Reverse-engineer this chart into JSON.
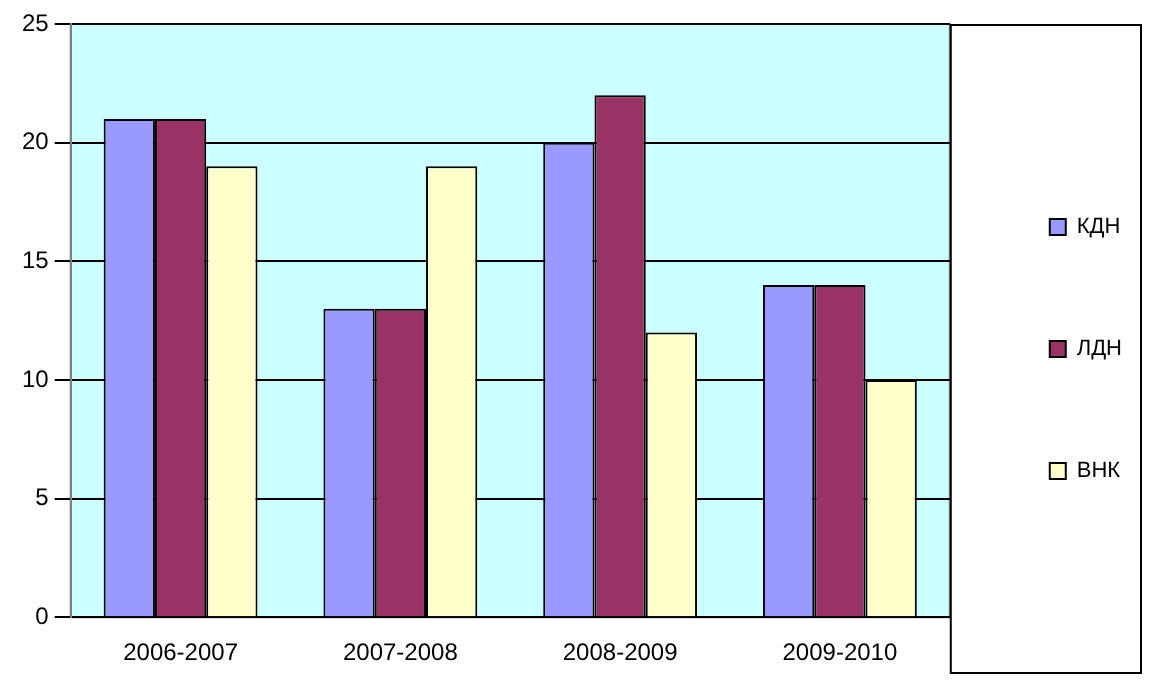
{
  "chart_data": {
    "type": "bar",
    "categories": [
      "2006-2007",
      "2007-2008",
      "2008-2009",
      "2009-2010"
    ],
    "series": [
      {
        "name": "КДН",
        "color": "#9999ff",
        "values": [
          21,
          13,
          20,
          14
        ]
      },
      {
        "name": "ЛДН",
        "color": "#993366",
        "values": [
          21,
          13,
          22,
          14
        ]
      },
      {
        "name": "ВНК",
        "color": "#ffffcc",
        "values": [
          19,
          19,
          12,
          10
        ]
      }
    ],
    "ylim": [
      0,
      25
    ],
    "yticks": [
      0,
      5,
      10,
      15,
      20,
      25
    ],
    "grid": "y",
    "legend": "right"
  }
}
